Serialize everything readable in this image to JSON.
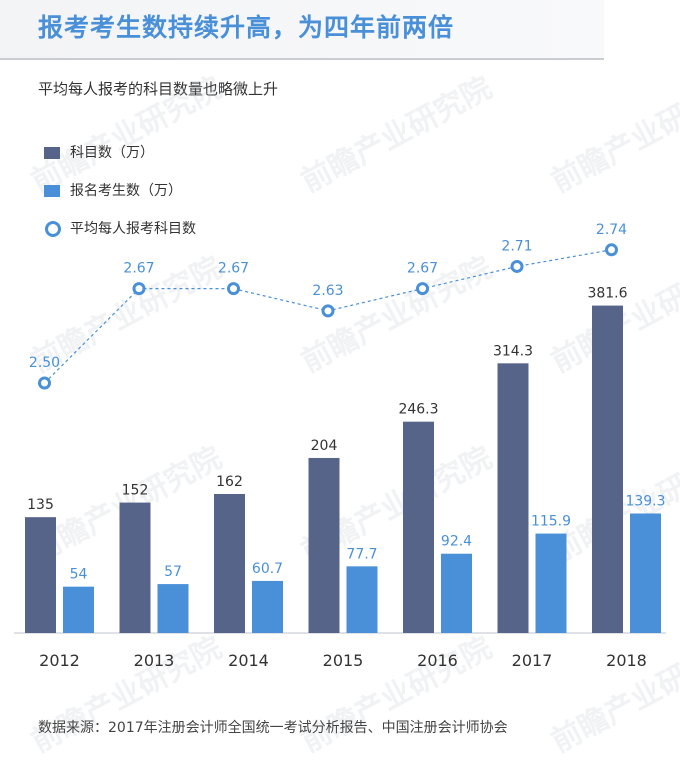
{
  "header": {
    "title": "报考考生数持续升高，为四年前两倍",
    "subtitle": "平均每人报考的科目数量也略微上升"
  },
  "legend": {
    "subjects": "科目数（万）",
    "candidates": "报名考生数（万）",
    "average": "平均每人报考科目数"
  },
  "footer": {
    "source": "数据来源：2017年注册会计师全国统一考试分析报告、中国注册会计师协会"
  },
  "watermark": {
    "text": "前瞻产业研究院"
  },
  "colors": {
    "subjects": "#566489",
    "candidates": "#4a90d9",
    "average": "#4a90d9",
    "title": "#4a90d9"
  },
  "chart_data": {
    "type": "bar",
    "categories": [
      "2012",
      "2013",
      "2014",
      "2015",
      "2016",
      "2017",
      "2018"
    ],
    "series": [
      {
        "name": "科目数（万）",
        "type": "bar",
        "values": [
          135,
          152,
          162,
          204,
          246.3,
          314.3,
          381.6
        ],
        "labels": [
          "135",
          "152",
          "162",
          "204",
          "246.3",
          "314.3",
          "381.6"
        ]
      },
      {
        "name": "报名考生数（万）",
        "type": "bar",
        "values": [
          54,
          57,
          60.7,
          77.7,
          92.4,
          115.9,
          139.3
        ],
        "labels": [
          "54",
          "57",
          "60.7",
          "77.7",
          "92.4",
          "115.9",
          "139.3"
        ]
      },
      {
        "name": "平均每人报考科目数",
        "type": "line",
        "values": [
          2.5,
          2.67,
          2.67,
          2.63,
          2.67,
          2.71,
          2.74
        ],
        "labels": [
          "2.50",
          "2.67",
          "2.67",
          "2.63",
          "2.67",
          "2.71",
          "2.74"
        ]
      }
    ],
    "grid": false,
    "legend_position": "top-left"
  }
}
